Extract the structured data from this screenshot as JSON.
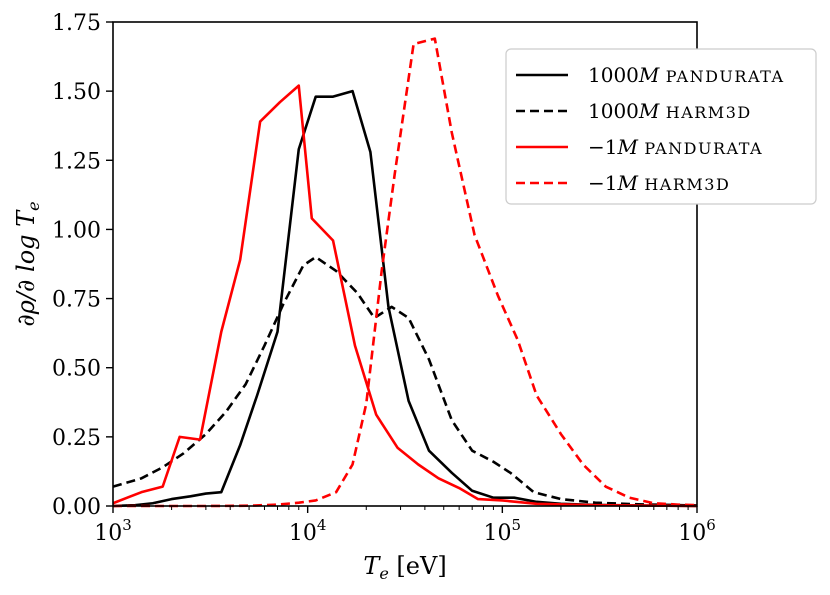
{
  "chart_data": {
    "type": "line",
    "title": "",
    "xlabel": "T_e  [eV]",
    "ylabel": "∂ρ/∂ log T_e",
    "xscale": "log",
    "xlim": [
      1000,
      1000000
    ],
    "ylim": [
      0,
      1.75
    ],
    "grid": false,
    "legend_position": "top-right",
    "x_ticks": [
      {
        "value": 1000,
        "base": "10",
        "exp": "3"
      },
      {
        "value": 10000,
        "base": "10",
        "exp": "4"
      },
      {
        "value": 100000,
        "base": "10",
        "exp": "5"
      },
      {
        "value": 1000000,
        "base": "10",
        "exp": "6"
      }
    ],
    "y_ticks": [
      {
        "value": 0,
        "label": "0.00"
      },
      {
        "value": 0.25,
        "label": "0.25"
      },
      {
        "value": 0.5,
        "label": "0.50"
      },
      {
        "value": 0.75,
        "label": "0.75"
      },
      {
        "value": 1.0,
        "label": "1.00"
      },
      {
        "value": 1.25,
        "label": "1.25"
      },
      {
        "value": 1.5,
        "label": "1.50"
      },
      {
        "value": 1.75,
        "label": "1.75"
      }
    ],
    "series": [
      {
        "name": "1000M pandurata",
        "name_prefix": "1000",
        "name_var": "M",
        "name_code": "pandurata",
        "color": "#000000",
        "dash": "solid",
        "points": [
          [
            1000,
            0.0
          ],
          [
            1300,
            0.003
          ],
          [
            1600,
            0.01
          ],
          [
            2000,
            0.025
          ],
          [
            2500,
            0.035
          ],
          [
            3000,
            0.045
          ],
          [
            3600,
            0.05
          ],
          [
            4500,
            0.22
          ],
          [
            5500,
            0.4
          ],
          [
            7000,
            0.63
          ],
          [
            9000,
            1.29
          ],
          [
            11000,
            1.48
          ],
          [
            13500,
            1.48
          ],
          [
            17000,
            1.5
          ],
          [
            21000,
            1.28
          ],
          [
            26000,
            0.72
          ],
          [
            33000,
            0.38
          ],
          [
            42000,
            0.2
          ],
          [
            55000,
            0.12
          ],
          [
            70000,
            0.055
          ],
          [
            90000,
            0.03
          ],
          [
            115000,
            0.03
          ],
          [
            150000,
            0.015
          ],
          [
            200000,
            0.008
          ],
          [
            300000,
            0.004
          ],
          [
            500000,
            0.002
          ],
          [
            1000000,
            0.0
          ]
        ]
      },
      {
        "name": "1000M harm3d",
        "name_prefix": "1000",
        "name_var": "M",
        "name_code": "harm3d",
        "color": "#000000",
        "dash": "dashed",
        "points": [
          [
            1000,
            0.07
          ],
          [
            1400,
            0.1
          ],
          [
            1800,
            0.14
          ],
          [
            2300,
            0.19
          ],
          [
            3000,
            0.26
          ],
          [
            3800,
            0.34
          ],
          [
            4800,
            0.44
          ],
          [
            6000,
            0.58
          ],
          [
            7500,
            0.73
          ],
          [
            9500,
            0.87
          ],
          [
            11000,
            0.9
          ],
          [
            14000,
            0.85
          ],
          [
            18000,
            0.77
          ],
          [
            22000,
            0.68
          ],
          [
            27000,
            0.72
          ],
          [
            33000,
            0.68
          ],
          [
            42000,
            0.53
          ],
          [
            55000,
            0.31
          ],
          [
            70000,
            0.2
          ],
          [
            90000,
            0.16
          ],
          [
            110000,
            0.12
          ],
          [
            145000,
            0.05
          ],
          [
            200000,
            0.025
          ],
          [
            300000,
            0.012
          ],
          [
            500000,
            0.006
          ],
          [
            1000000,
            0.002
          ]
        ]
      },
      {
        "name": "−1M pandurata",
        "name_prefix": "−1",
        "name_var": "M",
        "name_code": "pandurata",
        "color": "#ff0000",
        "dash": "solid",
        "points": [
          [
            1000,
            0.01
          ],
          [
            1400,
            0.05
          ],
          [
            1800,
            0.07
          ],
          [
            2200,
            0.25
          ],
          [
            2800,
            0.24
          ],
          [
            3600,
            0.63
          ],
          [
            4500,
            0.89
          ],
          [
            5700,
            1.39
          ],
          [
            7200,
            1.46
          ],
          [
            9000,
            1.52
          ],
          [
            10500,
            1.04
          ],
          [
            13500,
            0.96
          ],
          [
            17500,
            0.58
          ],
          [
            22500,
            0.33
          ],
          [
            29000,
            0.21
          ],
          [
            37000,
            0.15
          ],
          [
            47000,
            0.1
          ],
          [
            60000,
            0.065
          ],
          [
            75000,
            0.025
          ],
          [
            100000,
            0.02
          ],
          [
            150000,
            0.008
          ],
          [
            300000,
            0.003
          ],
          [
            1000000,
            0.0
          ]
        ]
      },
      {
        "name": "−1M harm3d",
        "name_prefix": "−1",
        "name_var": "M",
        "name_code": "harm3d",
        "color": "#ff0000",
        "dash": "dashed",
        "points": [
          [
            1000,
            0.0
          ],
          [
            3000,
            0.0
          ],
          [
            5000,
            0.001
          ],
          [
            7000,
            0.005
          ],
          [
            9000,
            0.012
          ],
          [
            11000,
            0.02
          ],
          [
            14000,
            0.05
          ],
          [
            17000,
            0.15
          ],
          [
            20000,
            0.37
          ],
          [
            24000,
            0.85
          ],
          [
            28000,
            1.2
          ],
          [
            35000,
            1.67
          ],
          [
            45000,
            1.69
          ],
          [
            55000,
            1.35
          ],
          [
            72000,
            0.98
          ],
          [
            95000,
            0.76
          ],
          [
            120000,
            0.6
          ],
          [
            150000,
            0.4
          ],
          [
            200000,
            0.26
          ],
          [
            260000,
            0.15
          ],
          [
            340000,
            0.07
          ],
          [
            450000,
            0.03
          ],
          [
            600000,
            0.01
          ],
          [
            800000,
            0.005
          ],
          [
            1000000,
            0.003
          ]
        ]
      }
    ]
  }
}
